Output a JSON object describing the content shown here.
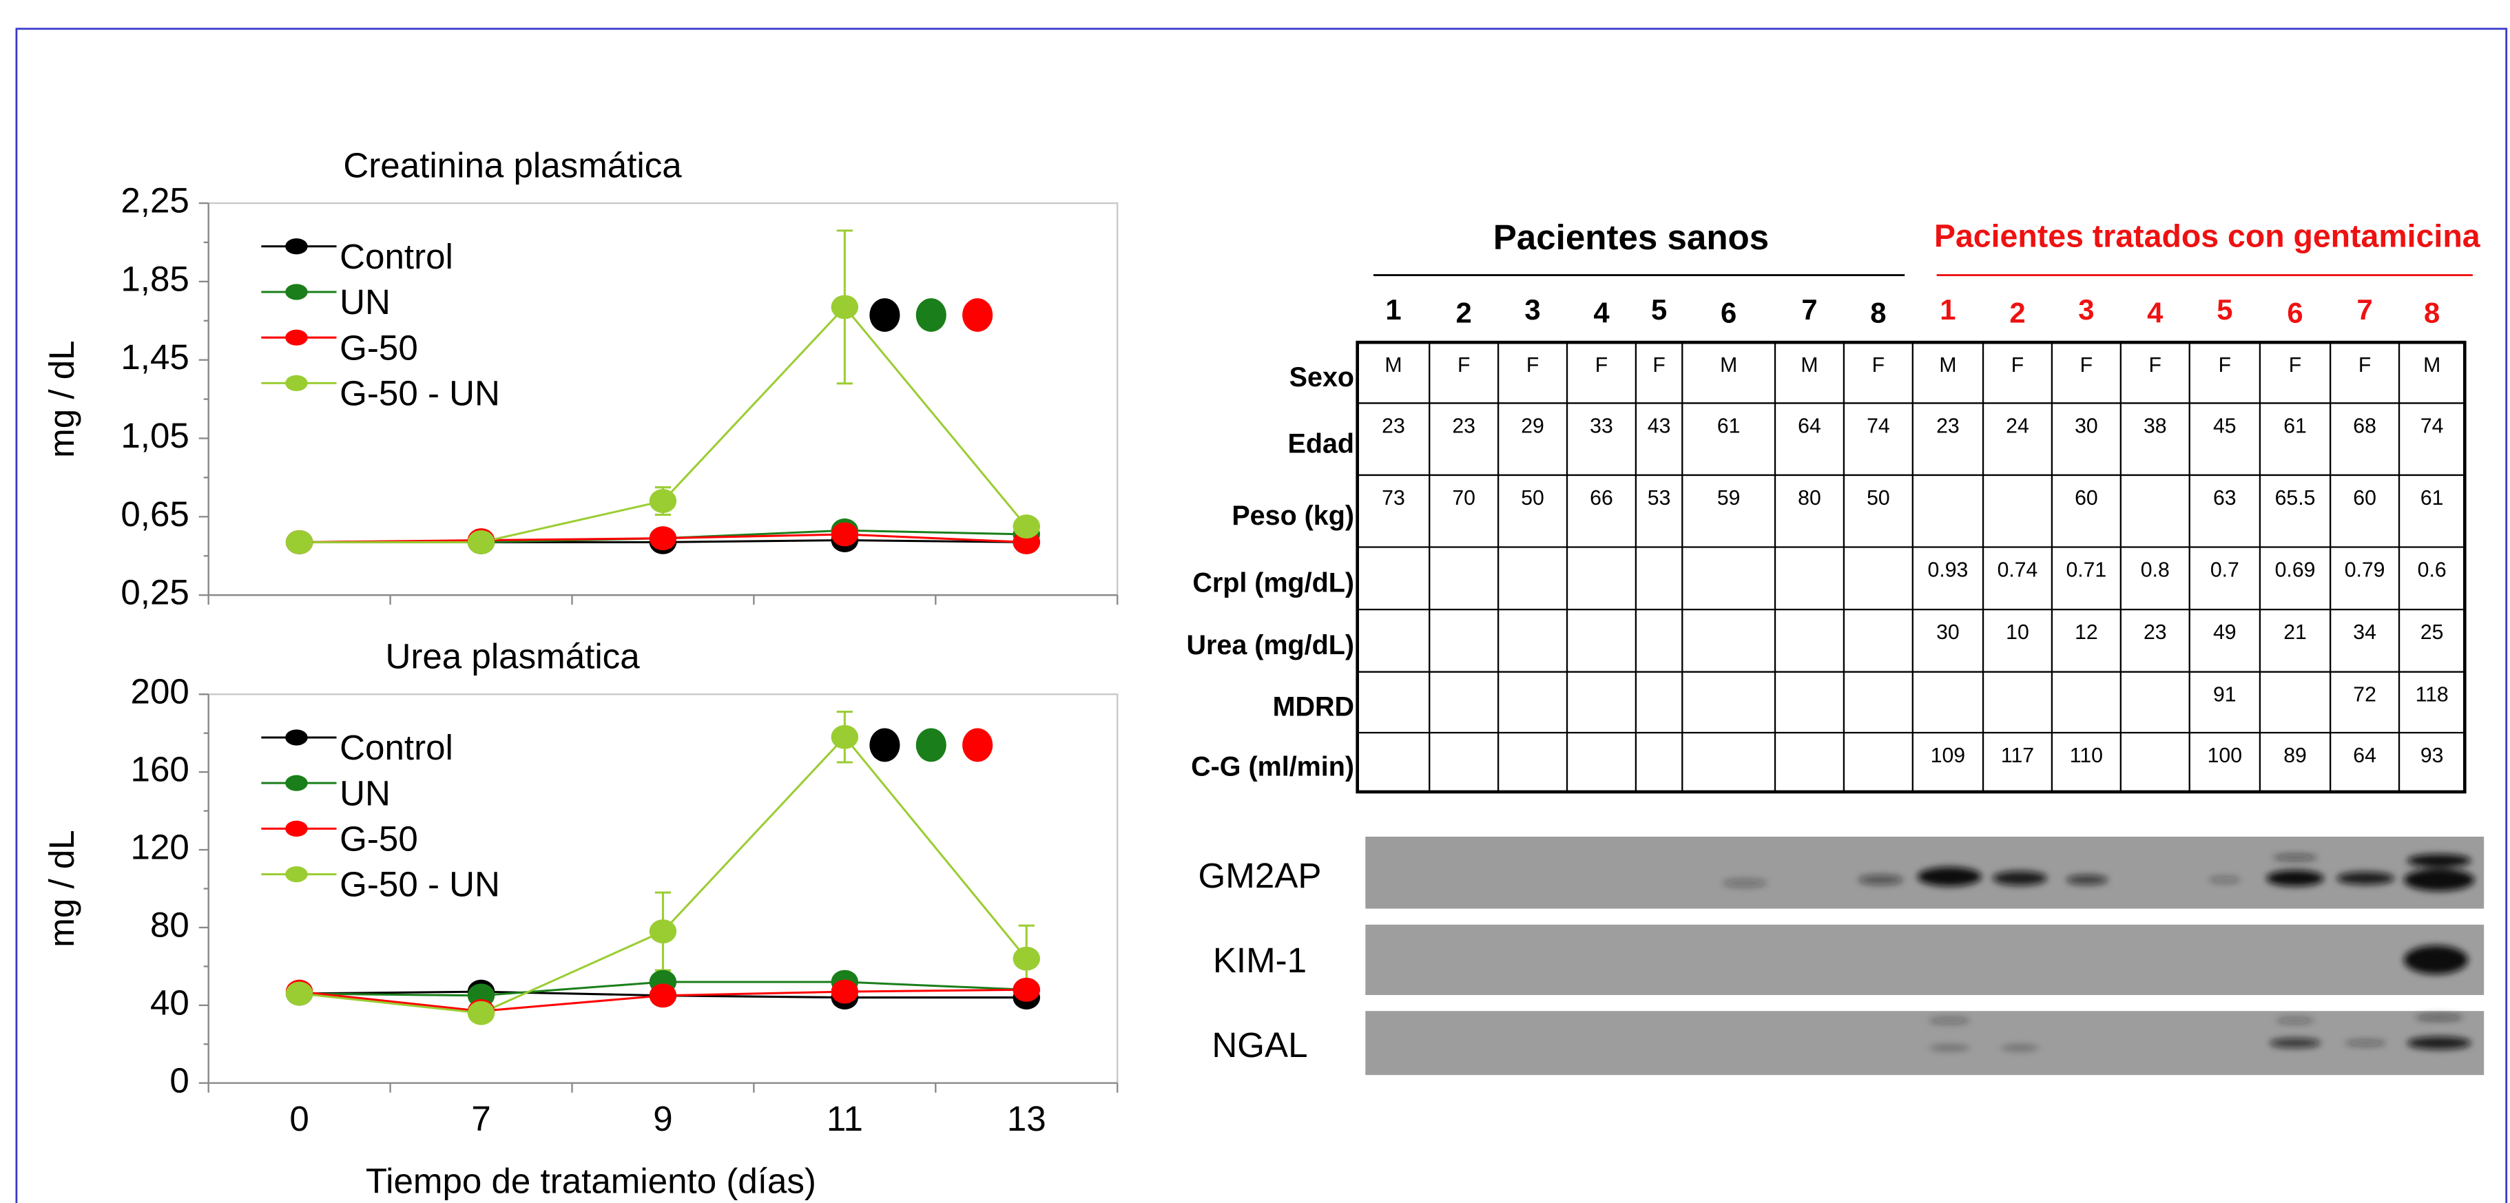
{
  "chart_data": [
    {
      "type": "line",
      "title": "Creatinina plasmática",
      "ylabel": "mg / dL",
      "categories": [
        "0",
        "7",
        "9",
        "11",
        "13"
      ],
      "series": [
        {
          "name": "Control",
          "color": "#000000",
          "values": [
            0.52,
            0.52,
            0.52,
            0.53,
            0.52
          ]
        },
        {
          "name": "UN",
          "color": "#1a7f1a",
          "values": [
            0.52,
            0.52,
            0.54,
            0.58,
            0.56
          ]
        },
        {
          "name": "G-50",
          "color": "#ff0000",
          "values": [
            0.52,
            0.53,
            0.54,
            0.56,
            0.52
          ]
        },
        {
          "name": "G-50 - UN",
          "color": "#9acd32",
          "values": [
            0.52,
            0.52,
            0.73,
            1.72,
            0.6
          ],
          "errors": [
            null,
            null,
            0.07,
            0.39,
            0.03
          ]
        }
      ],
      "ylim": [
        0.25,
        2.25
      ],
      "yticks": [
        {
          "value": 0.25,
          "label": "0,25"
        },
        {
          "value": 0.65,
          "label": "0,65"
        },
        {
          "value": 1.05,
          "label": "1,05"
        },
        {
          "value": 1.45,
          "label": "1,45"
        },
        {
          "value": 1.85,
          "label": "1,85"
        },
        {
          "value": 2.25,
          "label": "2,25"
        }
      ],
      "legend": "upper left"
    },
    {
      "type": "line",
      "title": "Urea plasmática",
      "ylabel": "mg / dL",
      "xlabel": "Tiempo de tratamiento (días)",
      "categories": [
        "0",
        "7",
        "9",
        "11",
        "13"
      ],
      "series": [
        {
          "name": "Control",
          "color": "#000000",
          "values": [
            46,
            47,
            45,
            44,
            44
          ]
        },
        {
          "name": "UN",
          "color": "#1a7f1a",
          "values": [
            46,
            45,
            52,
            52,
            48
          ]
        },
        {
          "name": "G-50",
          "color": "#ff0000",
          "values": [
            47,
            37,
            45,
            47,
            48
          ]
        },
        {
          "name": "G-50 - UN",
          "color": "#9acd32",
          "values": [
            46,
            36,
            78,
            178,
            64
          ],
          "errors": [
            null,
            null,
            20,
            13,
            17
          ]
        }
      ],
      "ylim": [
        0,
        200
      ],
      "yticks": [
        0,
        40,
        80,
        120,
        160,
        200
      ],
      "legend": "upper left"
    }
  ],
  "table": {
    "group_headers": [
      "Pacientes sanos",
      "Pacientes tratados con gentamicina"
    ],
    "columns": [
      1,
      2,
      3,
      4,
      5,
      6,
      7,
      8,
      1,
      2,
      3,
      4,
      5,
      6,
      7,
      8
    ],
    "row_labels": [
      "Sexo",
      "Edad",
      "Peso (kg)",
      "Crpl (mg/dL)",
      "Urea (mg/dL)",
      "MDRD",
      "C-G (ml/min)"
    ],
    "rows": [
      [
        "M",
        "F",
        "F",
        "F",
        "F",
        "M",
        "M",
        "F",
        "M",
        "F",
        "F",
        "F",
        "F",
        "F",
        "F",
        "M"
      ],
      [
        23,
        23,
        29,
        33,
        43,
        61,
        64,
        74,
        23,
        24,
        30,
        38,
        45,
        61,
        68,
        74
      ],
      [
        73,
        70,
        50,
        66,
        53,
        59,
        80,
        50,
        null,
        null,
        60,
        null,
        63,
        65.5,
        60,
        61
      ],
      [
        null,
        null,
        null,
        null,
        null,
        null,
        null,
        null,
        0.93,
        0.74,
        0.71,
        0.8,
        0.7,
        0.69,
        0.79,
        0.6
      ],
      [
        null,
        null,
        null,
        null,
        null,
        null,
        null,
        null,
        30,
        10,
        12,
        23,
        49,
        21,
        34,
        25
      ],
      [
        null,
        null,
        null,
        null,
        null,
        null,
        null,
        null,
        null,
        null,
        null,
        null,
        91,
        null,
        72,
        118
      ],
      [
        null,
        null,
        null,
        null,
        null,
        null,
        null,
        null,
        109,
        117,
        110,
        null,
        100,
        89,
        64,
        93
      ]
    ]
  },
  "blot": {
    "labels": [
      "GM2AP",
      "KIM-1",
      "NGAL"
    ]
  }
}
